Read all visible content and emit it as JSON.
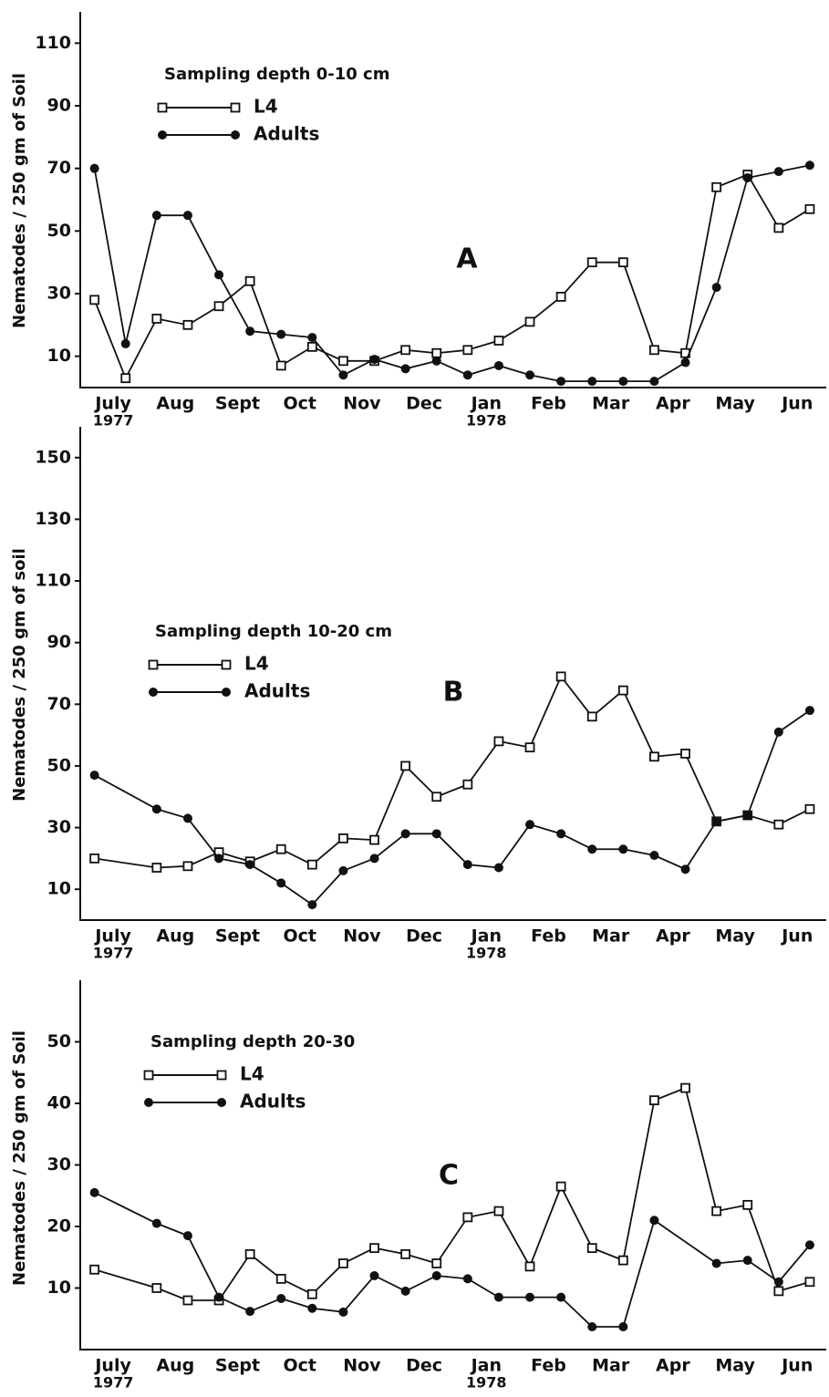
{
  "chart_data": [
    {
      "type": "line",
      "label": "A",
      "legend_title": "Sampling depth 0-10 cm",
      "ylabel": "Nematodes / 250 gm of Soil",
      "xlim": [
        0,
        12
      ],
      "ylim": [
        0,
        120
      ],
      "yticks": [
        10,
        30,
        50,
        70,
        90,
        110
      ],
      "xticks": [
        {
          "value": 0.5,
          "label": "July",
          "sublabel": "1977"
        },
        {
          "value": 1.5,
          "label": "Aug"
        },
        {
          "value": 2.5,
          "label": "Sept"
        },
        {
          "value": 3.5,
          "label": "Oct"
        },
        {
          "value": 4.5,
          "label": "Nov"
        },
        {
          "value": 5.5,
          "label": "Dec"
        },
        {
          "value": 6.5,
          "label": "Jan",
          "sublabel": "1978"
        },
        {
          "value": 7.5,
          "label": "Feb"
        },
        {
          "value": 8.5,
          "label": "Mar"
        },
        {
          "value": 9.5,
          "label": "Apr"
        },
        {
          "value": 10.5,
          "label": "May"
        },
        {
          "value": 11.5,
          "label": "Jun"
        }
      ],
      "series": [
        {
          "name": "L4",
          "marker": "square",
          "color": "#111111",
          "x": [
            0.2,
            0.7,
            1.2,
            1.7,
            2.2,
            2.7,
            3.2,
            3.7,
            4.2,
            4.7,
            5.2,
            5.7,
            6.2,
            6.7,
            7.2,
            7.7,
            8.2,
            8.7,
            9.2,
            9.7,
            10.2,
            10.7,
            11.2,
            11.7
          ],
          "values": [
            28,
            3,
            22,
            20,
            26,
            34,
            7,
            13,
            8.5,
            8.5,
            12,
            11,
            12,
            15,
            21,
            29,
            40,
            40,
            12,
            11,
            64,
            68,
            51,
            57
          ]
        },
        {
          "name": "Adults",
          "marker": "circle",
          "color": "#111111",
          "x": [
            0.2,
            0.7,
            1.2,
            1.7,
            2.2,
            2.7,
            3.2,
            3.7,
            4.2,
            4.7,
            5.2,
            5.7,
            6.2,
            6.7,
            7.2,
            7.7,
            8.2,
            8.7,
            9.2,
            9.7,
            10.2,
            10.7,
            11.2,
            11.7
          ],
          "values": [
            70,
            14,
            55,
            55,
            36,
            18,
            17,
            16,
            4,
            9,
            6,
            8.5,
            4,
            7,
            4,
            2,
            2,
            2,
            2,
            8,
            32,
            67,
            69,
            71
          ]
        }
      ]
    },
    {
      "type": "line",
      "label": "B",
      "legend_title": "Sampling depth 10-20 cm",
      "ylabel": "Nematodes / 250 gm of soil",
      "xlim": [
        0,
        12
      ],
      "ylim": [
        0,
        160
      ],
      "yticks": [
        10,
        30,
        50,
        70,
        90,
        110,
        130,
        150
      ],
      "xticks": [
        {
          "value": 0.5,
          "label": "July",
          "sublabel": "1977"
        },
        {
          "value": 1.5,
          "label": "Aug"
        },
        {
          "value": 2.5,
          "label": "Sept"
        },
        {
          "value": 3.5,
          "label": "Oct"
        },
        {
          "value": 4.5,
          "label": "Nov"
        },
        {
          "value": 5.5,
          "label": "Dec"
        },
        {
          "value": 6.5,
          "label": "Jan",
          "sublabel": "1978"
        },
        {
          "value": 7.5,
          "label": "Feb"
        },
        {
          "value": 8.5,
          "label": "Mar"
        },
        {
          "value": 9.5,
          "label": "Apr"
        },
        {
          "value": 10.5,
          "label": "May"
        },
        {
          "value": 11.5,
          "label": "Jun"
        }
      ],
      "series": [
        {
          "name": "L4",
          "marker": "square",
          "color": "#111111",
          "x": [
            0.2,
            1.2,
            1.7,
            2.2,
            2.7,
            3.2,
            3.7,
            4.2,
            4.7,
            5.2,
            5.7,
            6.2,
            6.7,
            7.2,
            7.7,
            8.2,
            8.7,
            9.2,
            9.7,
            10.2,
            10.7,
            11.2,
            11.7
          ],
          "values": [
            20,
            17,
            17.5,
            22,
            19,
            23,
            18,
            26.5,
            26,
            50,
            40,
            44,
            58,
            56,
            79,
            66,
            74.5,
            53,
            54,
            32,
            34,
            31,
            36
          ]
        },
        {
          "name": "Adults",
          "marker": "circle",
          "color": "#111111",
          "x": [
            0.2,
            1.2,
            1.7,
            2.2,
            2.7,
            3.2,
            3.7,
            4.2,
            4.7,
            5.2,
            5.7,
            6.2,
            6.7,
            7.2,
            7.7,
            8.2,
            8.7,
            9.2,
            9.7,
            10.2,
            10.7,
            11.2,
            11.7
          ],
          "values": [
            47,
            36,
            33,
            20,
            18,
            12,
            5,
            16,
            20,
            28,
            28,
            18,
            17,
            31,
            28,
            23,
            23,
            21,
            16.5,
            32,
            34,
            61,
            68
          ]
        }
      ]
    },
    {
      "type": "line",
      "label": "C",
      "legend_title": "Sampling depth 20-30",
      "ylabel": "Nematodes / 250 gm of Soil",
      "xlim": [
        0,
        12
      ],
      "ylim": [
        0,
        60
      ],
      "yticks": [
        10,
        20,
        30,
        40,
        50
      ],
      "xticks": [
        {
          "value": 0.5,
          "label": "July",
          "sublabel": "1977"
        },
        {
          "value": 1.5,
          "label": "Aug"
        },
        {
          "value": 2.5,
          "label": "Sept"
        },
        {
          "value": 3.5,
          "label": "Oct"
        },
        {
          "value": 4.5,
          "label": "Nov"
        },
        {
          "value": 5.5,
          "label": "Dec"
        },
        {
          "value": 6.5,
          "label": "Jan",
          "sublabel": "1978"
        },
        {
          "value": 7.5,
          "label": "Feb"
        },
        {
          "value": 8.5,
          "label": "Mar"
        },
        {
          "value": 9.5,
          "label": "Apr"
        },
        {
          "value": 10.5,
          "label": "May"
        },
        {
          "value": 11.5,
          "label": "Jun"
        }
      ],
      "series": [
        {
          "name": "L4",
          "marker": "square",
          "color": "#111111",
          "x": [
            0.2,
            1.2,
            1.7,
            2.2,
            2.7,
            3.2,
            3.7,
            4.2,
            4.7,
            5.2,
            5.7,
            6.2,
            6.7,
            7.2,
            7.7,
            8.2,
            8.7,
            9.2,
            9.7,
            10.2,
            10.7,
            11.2,
            11.7
          ],
          "values": [
            13,
            10,
            8,
            8,
            15.5,
            11.5,
            9,
            14,
            16.5,
            15.5,
            14,
            21.5,
            22.5,
            13.5,
            26.5,
            16.5,
            14.5,
            40.5,
            42.5,
            22.5,
            23.5,
            9.5,
            11
          ]
        },
        {
          "name": "Adults",
          "marker": "circle",
          "color": "#111111",
          "x": [
            0.2,
            1.2,
            1.7,
            2.2,
            2.7,
            3.2,
            3.7,
            4.2,
            4.7,
            5.2,
            5.7,
            6.2,
            6.7,
            7.2,
            7.7,
            8.2,
            8.7,
            9.2,
            10.2,
            10.7,
            11.2,
            11.7
          ],
          "values": [
            25.5,
            20.5,
            18.5,
            8.5,
            6.2,
            8.3,
            6.7,
            6.1,
            12,
            9.5,
            12,
            11.5,
            8.5,
            8.5,
            8.5,
            3.7,
            3.7,
            21,
            14,
            14.5,
            11,
            17
          ]
        }
      ]
    }
  ]
}
